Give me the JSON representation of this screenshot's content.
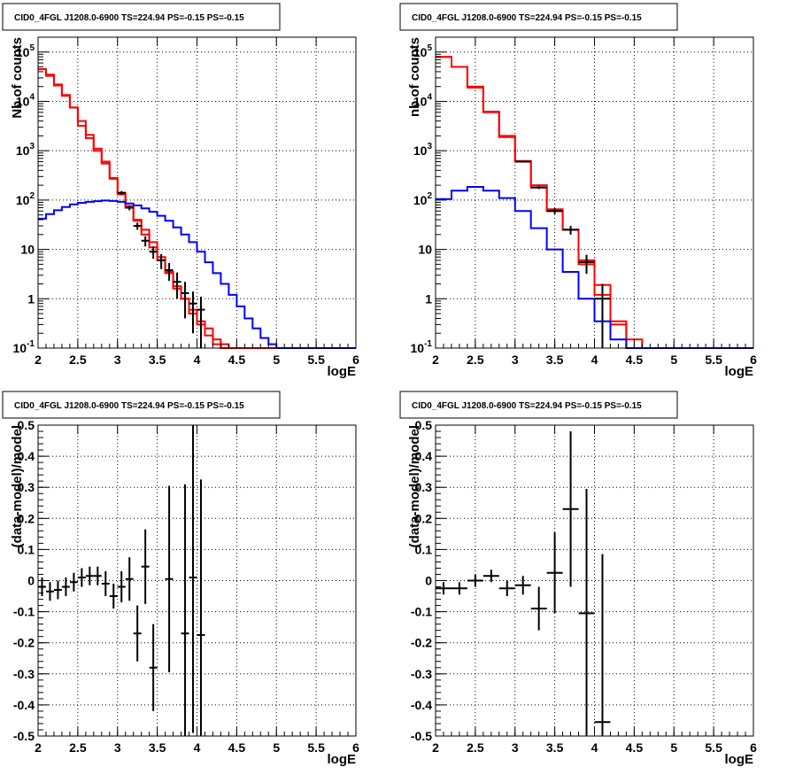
{
  "colors": {
    "data": "#000000",
    "total_model": "#ff0000",
    "component_model": "#0000ff",
    "grid": "#000000"
  },
  "chart_data": [
    {
      "type": "line",
      "title": "CID0_4FGL J1208.0-6900 TS=224.94 PS=-0.15 PS=-0.15",
      "xlabel": "logE",
      "ylabel": "Nb of counts",
      "xlim": [
        2,
        6
      ],
      "ylim": [
        0.1,
        200000
      ],
      "yscale": "log",
      "grid": true,
      "x_ticks": [
        "2",
        "2.5",
        "3",
        "3.5",
        "4",
        "4.5",
        "5",
        "5.5",
        "6"
      ],
      "y_ticks": [
        {
          "value": 0.1,
          "base": "10",
          "exp": "-1"
        },
        {
          "value": 1,
          "base": "1",
          "exp": ""
        },
        {
          "value": 10,
          "base": "10",
          "exp": ""
        },
        {
          "value": 100,
          "base": "10",
          "exp": "2"
        },
        {
          "value": 1000,
          "base": "10",
          "exp": "3"
        },
        {
          "value": 10000,
          "base": "10",
          "exp": "4"
        },
        {
          "value": 100000,
          "base": "10",
          "exp": "5"
        }
      ],
      "bin_width": 0.1,
      "series": [
        {
          "kind": "step",
          "color": "#ff0000",
          "x": [
            2.0,
            2.1,
            2.2,
            2.3,
            2.4,
            2.5,
            2.6,
            2.7,
            2.8,
            2.9,
            3.0,
            3.1,
            3.2,
            3.3,
            3.4,
            3.5,
            3.6,
            3.7,
            3.8,
            3.9,
            4.0,
            4.1,
            4.2,
            4.3,
            4.4,
            4.5,
            4.6,
            4.7,
            4.8,
            4.9,
            5.0,
            5.1,
            5.2,
            5.3,
            5.4,
            5.5,
            5.6,
            5.7,
            5.8,
            5.9
          ],
          "y": [
            45000,
            33000,
            21000,
            13000,
            7500,
            4000,
            2100,
            1100,
            550,
            270,
            140,
            70,
            38,
            20,
            11,
            6,
            3.3,
            1.8,
            1.0,
            0.5,
            0.3,
            0.18,
            0.12,
            0.1,
            0.1,
            0.1,
            0.1,
            0.1,
            0.1,
            0.1,
            0.1,
            0.1,
            0.1,
            0.1,
            0.1,
            0.1,
            0.1,
            0.1,
            0.1,
            0.1
          ]
        },
        {
          "kind": "step",
          "color": "#ff0000",
          "x": [
            2.0,
            2.1,
            2.2,
            2.3,
            2.4,
            2.5,
            2.6,
            2.7,
            2.8,
            2.9,
            3.0,
            3.1,
            3.2,
            3.3,
            3.4,
            3.5,
            3.6,
            3.7,
            3.8,
            3.9,
            4.0,
            4.1,
            4.2,
            4.3,
            4.4
          ],
          "y": [
            45000,
            35000,
            22000,
            13500,
            7500,
            3200,
            1800,
            1000,
            600,
            280,
            130,
            75,
            40,
            25,
            14,
            7,
            3.5,
            1.6,
            1.0,
            0.6,
            0.35,
            0.25,
            0.15,
            0.12,
            0.1
          ]
        },
        {
          "kind": "step",
          "color": "#0000ff",
          "x": [
            2.0,
            2.1,
            2.2,
            2.3,
            2.4,
            2.5,
            2.6,
            2.7,
            2.8,
            2.9,
            3.0,
            3.1,
            3.2,
            3.3,
            3.4,
            3.5,
            3.6,
            3.7,
            3.8,
            3.9,
            4.0,
            4.1,
            4.2,
            4.3,
            4.4,
            4.5,
            4.6,
            4.7,
            4.8,
            4.9,
            5.0,
            5.1,
            5.2,
            5.3,
            5.4,
            5.5,
            5.6,
            5.7,
            5.8,
            5.9
          ],
          "y": [
            42,
            52,
            62,
            72,
            82,
            88,
            92,
            95,
            98,
            96,
            92,
            85,
            78,
            68,
            58,
            48,
            38,
            28,
            20,
            14,
            9,
            5.5,
            3.3,
            2,
            1.2,
            0.7,
            0.4,
            0.25,
            0.16,
            0.12,
            0.1,
            0.1,
            0.1,
            0.1,
            0.1,
            0.1,
            0.1,
            0.1,
            0.1,
            0.1
          ]
        },
        {
          "kind": "errorbar",
          "color": "#000000",
          "x": [
            3.05,
            3.15,
            3.25,
            3.35,
            3.45,
            3.55,
            3.65,
            3.75,
            3.85,
            3.95,
            4.05
          ],
          "y": [
            140,
            70,
            30,
            15,
            9,
            6,
            3.8,
            2.2,
            1.3,
            0.8,
            0.6
          ],
          "yerr_low": [
            12,
            8,
            5,
            3.5,
            2.5,
            2,
            1.5,
            1.2,
            0.9,
            0.6,
            0.5
          ],
          "yerr_high": [
            12,
            8,
            5,
            3.5,
            2.5,
            2,
            1.5,
            1.2,
            0.9,
            0.6,
            0.5
          ]
        }
      ]
    },
    {
      "type": "line",
      "title": "CID0_4FGL J1208.0-6900 TS=224.94 PS=-0.15 PS=-0.15",
      "xlabel": "logE",
      "ylabel": "nb of counts",
      "xlim": [
        2,
        6
      ],
      "ylim": [
        0.1,
        200000
      ],
      "yscale": "log",
      "grid": true,
      "x_ticks": [
        "2",
        "2.5",
        "3",
        "3.5",
        "4",
        "4.5",
        "5",
        "5.5",
        "6"
      ],
      "y_ticks": [
        {
          "value": 0.1,
          "base": "10",
          "exp": "-1"
        },
        {
          "value": 1,
          "base": "1",
          "exp": ""
        },
        {
          "value": 10,
          "base": "10",
          "exp": ""
        },
        {
          "value": 100,
          "base": "10",
          "exp": "2"
        },
        {
          "value": 1000,
          "base": "10",
          "exp": "3"
        },
        {
          "value": 10000,
          "base": "10",
          "exp": "4"
        },
        {
          "value": 100000,
          "base": "10",
          "exp": "5"
        }
      ],
      "bin_width": 0.2,
      "series": [
        {
          "kind": "step",
          "color": "#ff0000",
          "x": [
            2.0,
            2.2,
            2.4,
            2.6,
            2.8,
            3.0,
            3.2,
            3.4,
            3.6,
            3.8,
            4.0,
            4.2,
            4.4,
            4.6,
            4.8,
            5.0,
            5.2,
            5.4,
            5.6,
            5.8
          ],
          "y": [
            80000,
            50000,
            19000,
            6000,
            2000,
            620,
            200,
            65,
            25,
            6,
            1.9,
            0.35,
            0.15,
            0.1,
            0.1,
            0.1,
            0.1,
            0.1,
            0.1,
            0.1
          ]
        },
        {
          "kind": "step",
          "color": "#ff0000",
          "x": [
            2.0,
            2.2,
            2.4,
            2.6,
            2.8,
            3.0,
            3.2,
            3.4,
            3.6,
            3.8,
            4.0,
            4.2,
            4.4
          ],
          "y": [
            80000,
            50000,
            20000,
            6200,
            1900,
            600,
            180,
            60,
            25,
            5,
            1.2,
            0.3,
            0.1
          ]
        },
        {
          "kind": "step",
          "color": "#0000ff",
          "x": [
            2.0,
            2.2,
            2.4,
            2.6,
            2.8,
            3.0,
            3.2,
            3.4,
            3.6,
            3.8,
            4.0,
            4.2,
            4.4,
            4.6,
            4.8,
            5.0,
            5.2,
            5.4,
            5.6,
            5.8
          ],
          "y": [
            105,
            155,
            185,
            155,
            110,
            60,
            27,
            10,
            3.5,
            1.0,
            0.35,
            0.15,
            0.1,
            0.1,
            0.1,
            0.1,
            0.1,
            0.1,
            0.1,
            0.1
          ]
        },
        {
          "kind": "errorbar",
          "color": "#000000",
          "x": [
            3.1,
            3.3,
            3.5,
            3.7,
            3.9,
            4.1
          ],
          "y": [
            600,
            180,
            60,
            25,
            5.5,
            1.0
          ],
          "yerr_low": [
            25,
            13,
            8,
            5,
            2.3,
            0.98
          ],
          "yerr_high": [
            25,
            13,
            8,
            5,
            2.3,
            1.0
          ]
        }
      ]
    },
    {
      "type": "scatter",
      "title": "CID0_4FGL J1208.0-6900 TS=224.94 PS=-0.15 PS=-0.15",
      "xlabel": "logE",
      "ylabel": "(data-model)/model",
      "xlim": [
        2,
        6
      ],
      "ylim": [
        -0.5,
        0.5
      ],
      "grid": true,
      "x_ticks": [
        "2",
        "2.5",
        "3",
        "3.5",
        "4",
        "4.5",
        "5",
        "5.5",
        "6"
      ],
      "y_ticks": [
        "-0.5",
        "-0.4",
        "-0.3",
        "-0.2",
        "-0.1",
        "0",
        "0.1",
        "0.2",
        "0.3",
        "0.4",
        "0.5"
      ],
      "bin_width": 0.1,
      "series": [
        {
          "kind": "errorbar",
          "color": "#000000",
          "x": [
            2.05,
            2.15,
            2.25,
            2.35,
            2.45,
            2.55,
            2.65,
            2.75,
            2.85,
            2.95,
            3.05,
            3.15,
            3.25,
            3.35,
            3.45,
            3.65,
            3.85,
            3.95,
            4.05
          ],
          "y": [
            -0.02,
            -0.035,
            -0.03,
            -0.02,
            -0.005,
            0.01,
            0.015,
            0.015,
            -0.01,
            -0.05,
            -0.02,
            0.005,
            -0.17,
            0.045,
            -0.28,
            0.005,
            -0.17,
            0.01,
            -0.175
          ],
          "yerr_low": [
            0.03,
            0.03,
            0.03,
            0.03,
            0.03,
            0.03,
            0.03,
            0.03,
            0.04,
            0.04,
            0.05,
            0.07,
            0.09,
            0.12,
            0.14,
            0.3,
            0.48,
            0.5,
            0.5
          ],
          "yerr_high": [
            0.03,
            0.03,
            0.03,
            0.03,
            0.03,
            0.03,
            0.03,
            0.03,
            0.04,
            0.04,
            0.05,
            0.07,
            0.09,
            0.12,
            0.14,
            0.3,
            0.48,
            0.5,
            0.5
          ]
        }
      ]
    },
    {
      "type": "scatter",
      "title": "CID0_4FGL J1208.0-6900 TS=224.94 PS=-0.15 PS=-0.15",
      "xlabel": "logE",
      "ylabel": "(data-model)/model",
      "xlim": [
        2,
        6
      ],
      "ylim": [
        -0.5,
        0.5
      ],
      "grid": true,
      "x_ticks": [
        "2",
        "2.5",
        "3",
        "3.5",
        "4",
        "4.5",
        "5",
        "5.5",
        "6"
      ],
      "y_ticks": [
        "-0.5",
        "-0.4",
        "-0.3",
        "-0.2",
        "-0.1",
        "0",
        "0.1",
        "0.2",
        "0.3",
        "0.4",
        "0.5"
      ],
      "bin_width": 0.2,
      "series": [
        {
          "kind": "errorbar",
          "color": "#000000",
          "x": [
            2.1,
            2.3,
            2.5,
            2.7,
            2.9,
            3.1,
            3.3,
            3.5,
            3.7,
            3.9,
            4.1
          ],
          "y": [
            -0.025,
            -0.025,
            0.0,
            0.015,
            -0.025,
            -0.015,
            -0.09,
            0.025,
            0.23,
            -0.105,
            -0.455
          ],
          "yerr_low": [
            0.02,
            0.02,
            0.02,
            0.02,
            0.025,
            0.03,
            0.07,
            0.13,
            0.25,
            0.4,
            0.55
          ],
          "yerr_high": [
            0.02,
            0.02,
            0.02,
            0.02,
            0.025,
            0.03,
            0.07,
            0.13,
            0.25,
            0.4,
            0.54
          ]
        }
      ]
    }
  ]
}
